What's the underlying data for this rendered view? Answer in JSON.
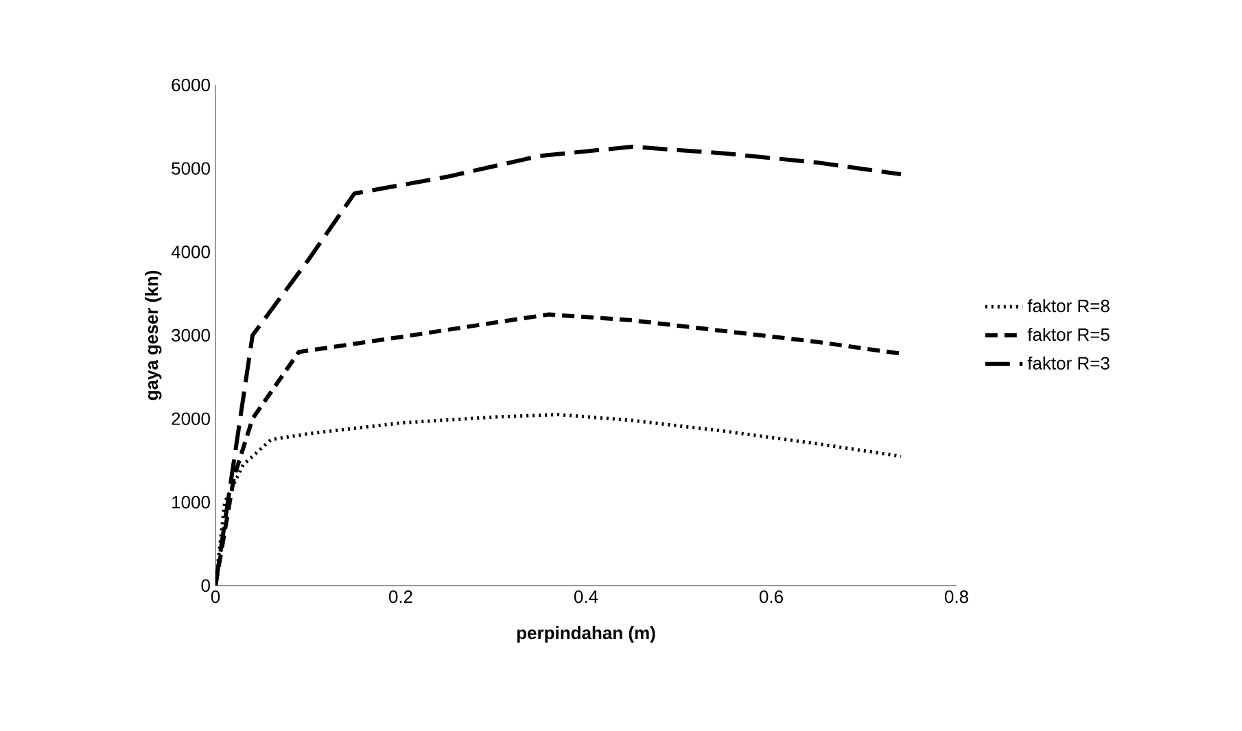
{
  "chart_data": {
    "type": "line",
    "xlabel": "perpindahan (m)",
    "ylabel": "gaya geser (kn)",
    "xlim": [
      0,
      0.8
    ],
    "ylim": [
      0,
      6000
    ],
    "xticks": [
      0,
      0.2,
      0.4,
      0.6,
      0.8
    ],
    "yticks": [
      0,
      1000,
      2000,
      3000,
      4000,
      5000,
      6000
    ],
    "legend": "right",
    "grid": false,
    "series": [
      {
        "name": "faktor R=8",
        "color": "#000000",
        "line_style": "dotted",
        "x": [
          0,
          0.01,
          0.03,
          0.06,
          0.1,
          0.2,
          0.3,
          0.37,
          0.45,
          0.55,
          0.65,
          0.74
        ],
        "values": [
          0,
          1000,
          1450,
          1750,
          1820,
          1950,
          2020,
          2050,
          1980,
          1850,
          1700,
          1550
        ]
      },
      {
        "name": "faktor R=5",
        "color": "#000000",
        "line_style": "dashed",
        "x": [
          0,
          0.02,
          0.04,
          0.09,
          0.2,
          0.3,
          0.36,
          0.45,
          0.55,
          0.65,
          0.74
        ],
        "values": [
          0,
          1300,
          2000,
          2800,
          2980,
          3150,
          3250,
          3180,
          3050,
          2920,
          2780
        ]
      },
      {
        "name": "faktor R=3",
        "color": "#000000",
        "line_style": "dashed",
        "x": [
          0,
          0.04,
          0.1,
          0.15,
          0.25,
          0.35,
          0.45,
          0.55,
          0.65,
          0.74
        ],
        "values": [
          0,
          3000,
          3900,
          4700,
          4900,
          5150,
          5260,
          5180,
          5070,
          4930
        ]
      }
    ]
  }
}
